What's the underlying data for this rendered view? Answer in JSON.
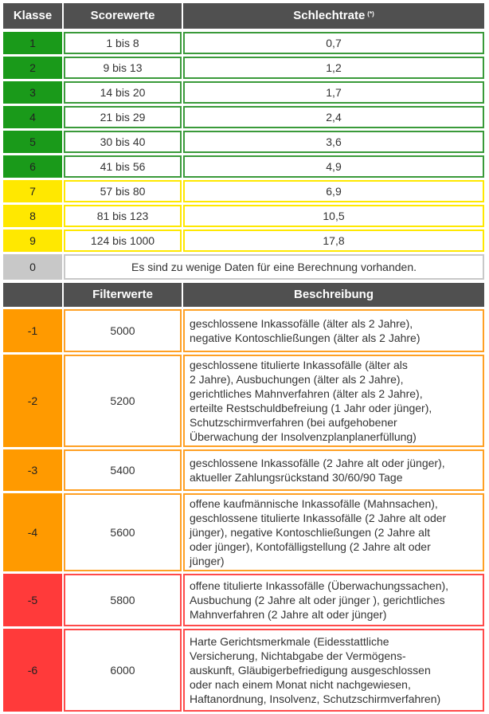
{
  "header1": {
    "klasse": "Klasse",
    "scorewerte": "Scorewerte",
    "schlechtrate": "Schlechtrate",
    "schlechtrate_note": "(*)"
  },
  "score_rows": [
    {
      "klasse": "1",
      "range": "1 bis 8",
      "rate": "0,7"
    },
    {
      "klasse": "2",
      "range": "9 bis 13",
      "rate": "1,2"
    },
    {
      "klasse": "3",
      "range": "14 bis 20",
      "rate": "1,7"
    },
    {
      "klasse": "4",
      "range": "21 bis 29",
      "rate": "2,4"
    },
    {
      "klasse": "5",
      "range": "30 bis 40",
      "rate": "3,6"
    },
    {
      "klasse": "6",
      "range": "41 bis 56",
      "rate": "4,9"
    },
    {
      "klasse": "7",
      "range": "57 bis 80",
      "rate": "6,9"
    },
    {
      "klasse": "8",
      "range": "81 bis 123",
      "rate": "10,5"
    },
    {
      "klasse": "9",
      "range": "124 bis 1000",
      "rate": "17,8"
    }
  ],
  "zero_row": {
    "klasse": "0",
    "text": "Es sind zu wenige Daten für eine Berechnung vorhanden."
  },
  "header2": {
    "filterwerte": "Filterwerte",
    "beschreibung": "Beschreibung"
  },
  "filter_rows": [
    {
      "klasse": "-1",
      "wert": "5000",
      "beschreibung": "geschlossene Inkassofälle (älter als 2 Jahre),\nnegative Kontoschließungen (älter als 2 Jahre)"
    },
    {
      "klasse": "-2",
      "wert": "5200",
      "beschreibung": "geschlossene titulierte Inkassofälle (älter als\n2 Jahre), Ausbuchungen (älter als 2 Jahre),\ngerichtliches Mahnverfahren (älter als 2 Jahre),\nerteilte Restschuldbefreiung (1 Jahr oder jünger),\nSchutzschirmverfahren (bei aufgehobener\nÜberwachung der Insolvenzplanplanerfüllung)"
    },
    {
      "klasse": "-3",
      "wert": "5400",
      "beschreibung": "geschlossene Inkassofälle (2 Jahre alt oder jünger),\naktueller Zahlungsrückstand 30/60/90 Tage"
    },
    {
      "klasse": "-4",
      "wert": "5600",
      "beschreibung": "offene kaufmännische Inkassofälle (Mahnsachen),\ngeschlossene titulierte Inkassofälle (2 Jahre alt oder\njünger), negative Kontoschließungen (2 Jahre alt\noder jünger), Kontofälligstellung (2 Jahre alt oder\njünger)"
    },
    {
      "klasse": "-5",
      "wert": "5800",
      "beschreibung": "offene titulierte Inkassofälle (Überwachungssachen),\nAusbuchung (2 Jahre alt oder jünger ), gerichtliches\nMahnverfahren (2 Jahre alt oder jünger)"
    },
    {
      "klasse": "-6",
      "wert": "6000",
      "beschreibung": "Harte Gerichtsmerkmale (Eidesstattliche\nVersicherung, Nichtabgabe der Vermögens-\nauskunft, Gläubigerbefriedigung ausgeschlossen\noder nach einem Monat nicht nachgewiesen,\nHaftanordnung, Insolvenz, Schutzschirmverfahren)"
    }
  ],
  "colors": {
    "header": "#505050",
    "green": "#1a9a1a",
    "yellow": "#ffe800",
    "gray": "#c8c8c8",
    "orange": "#ff9a00",
    "red": "#ff3a3a"
  }
}
